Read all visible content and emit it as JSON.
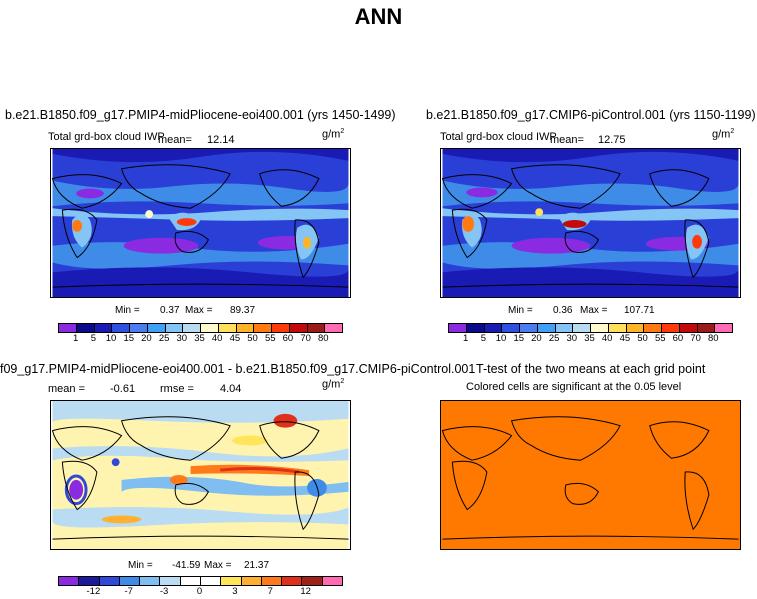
{
  "title": "ANN",
  "panels": {
    "top_left": {
      "title": "b.e21.B1850.f09_g17.PMIP4-midPliocene-eoi400.001 (yrs 1450-1499)",
      "subtitle": "Total grd-box cloud IWP",
      "mean_label": "mean=",
      "mean_value": "12.14",
      "unit": "g/m",
      "unit_exp": "2",
      "min_label": "Min =",
      "min_value": "0.37",
      "max_label": "Max =",
      "max_value": "89.37"
    },
    "top_right": {
      "title": "b.e21.B1850.f09_g17.CMIP6-piControl.001 (yrs 1150-1199)",
      "subtitle": "Total grd-box cloud IWP",
      "mean_label": "mean=",
      "mean_value": "12.75",
      "unit": "g/m",
      "unit_exp": "2",
      "min_label": "Min =",
      "min_value": "0.36",
      "max_label": "Max =",
      "max_value": "107.71"
    },
    "bottom_left": {
      "title": "f09_g17.PMIP4-midPliocene-eoi400.001 - b.e21.B1850.f09_g17.CMIP6-piControl.001",
      "mean_label": "mean =",
      "mean_value": "-0.61",
      "rmse_label": "rmse =",
      "rmse_value": "4.04",
      "unit": "g/m",
      "unit_exp": "2",
      "min_label": "Min =",
      "min_value": "-41.59",
      "max_label": "Max =",
      "max_value": "21.37"
    },
    "bottom_right": {
      "title": "T-test of the two means at each grid point",
      "subtitle": "Colored cells are significant at the 0.05 level"
    }
  },
  "colorbars": {
    "abs": {
      "labels": [
        "1",
        "5",
        "10",
        "15",
        "20",
        "25",
        "30",
        "35",
        "40",
        "45",
        "50",
        "55",
        "60",
        "70",
        "80"
      ],
      "colors": [
        "#8a2be2",
        "#0a0a8c",
        "#1a1ab4",
        "#3050e0",
        "#4a7ef0",
        "#3fa0f5",
        "#84c5f5",
        "#b7dcf2",
        "#fffacd",
        "#ffe05a",
        "#ffb426",
        "#ff7a10",
        "#ff3a0a",
        "#c20a0a",
        "#9b1b1b",
        "#ff6ab4"
      ]
    },
    "diff": {
      "labels": [
        "-12",
        "-7",
        "-3",
        "0",
        "3",
        "7",
        "12"
      ],
      "colors": [
        "#8a2be2",
        "#1a1a9a",
        "#2f4ad8",
        "#3f8ce8",
        "#80bdf0",
        "#b9dcf2",
        "#ffffff",
        "#ffffff",
        "#ffe55a",
        "#ffb030",
        "#ff7a1a",
        "#e0301a",
        "#a0201a",
        "#ff6ab4"
      ]
    }
  },
  "map_colors": {
    "ocean_low": "#2a3fd6",
    "ocean_mid": "#3f8ce8",
    "light": "#84c5f5",
    "purple": "#8a2be2",
    "ttest_fill": "#ff7800",
    "diff_bg": "#fff3b0"
  }
}
